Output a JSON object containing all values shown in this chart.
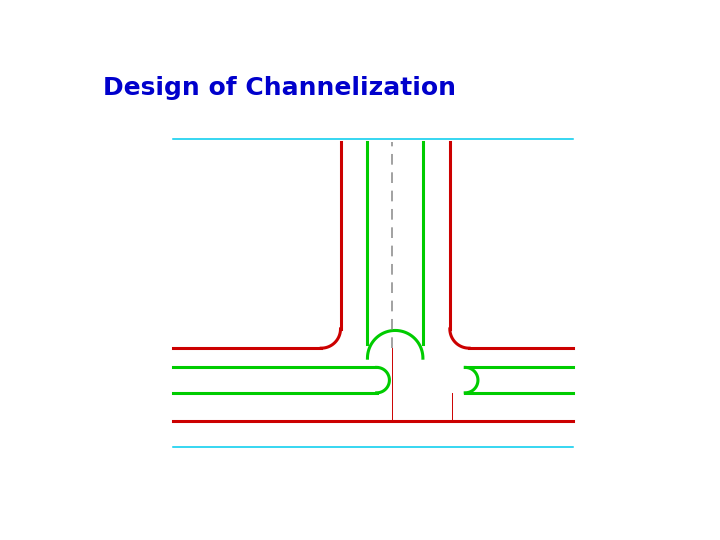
{
  "title": "Design of Channelization",
  "title_color": "#0000CC",
  "title_fs": 18,
  "bg": "#FFFFFF",
  "cyan": "#00CCEE",
  "red": "#CC0000",
  "green": "#00CC00",
  "gray": "#888888",
  "fw": 7.2,
  "fh": 5.4,
  "dpi": 100,
  "xl": 105,
  "xr": 625,
  "yct": 443,
  "ycb": 43,
  "yrt": 172,
  "yg1": 147,
  "yg2": 114,
  "yrb": 78,
  "vxrL": 323,
  "vxgL": 358,
  "vxgR": 430,
  "vxrR": 465,
  "vxd": 390,
  "yvt": 440,
  "rc": 25,
  "rge": 18,
  "ru": 18,
  "lw": 2.2,
  "lwd": 1.1
}
